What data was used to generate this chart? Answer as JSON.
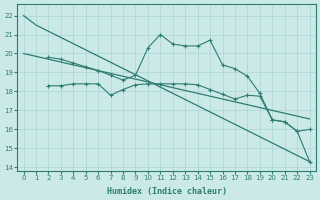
{
  "background_color": "#cce9e9",
  "grid_color": "#aad4d4",
  "line_color": "#2d7d6e",
  "xlabel": "Humidex (Indice chaleur)",
  "xlim": [
    -0.5,
    23.5
  ],
  "ylim": [
    13.8,
    22.6
  ],
  "yticks": [
    14,
    15,
    16,
    17,
    18,
    19,
    20,
    21,
    22
  ],
  "xticks": [
    0,
    1,
    2,
    3,
    4,
    5,
    6,
    7,
    8,
    9,
    10,
    11,
    12,
    13,
    14,
    15,
    16,
    17,
    18,
    19,
    20,
    21,
    22,
    23
  ],
  "line1_x": [
    0,
    1,
    23
  ],
  "line1_y": [
    22.0,
    21.5,
    14.3
  ],
  "line2_x": [
    0,
    1,
    2,
    3,
    4,
    5,
    6,
    7,
    8,
    9,
    10,
    11,
    12,
    13,
    14,
    15,
    16,
    17,
    18,
    19,
    20,
    21,
    22,
    23
  ],
  "line2_y": [
    20.0,
    19.85,
    19.7,
    19.55,
    19.4,
    19.25,
    19.1,
    18.95,
    18.8,
    18.65,
    18.5,
    18.35,
    18.2,
    18.05,
    17.9,
    17.75,
    17.6,
    17.45,
    17.3,
    17.15,
    17.0,
    16.85,
    16.7,
    16.55
  ],
  "line3_x": [
    2,
    3,
    4,
    5,
    6,
    7,
    8,
    9,
    10,
    11,
    12,
    13,
    14,
    15,
    16,
    17,
    18,
    19,
    20,
    21,
    22,
    23
  ],
  "line3_y": [
    19.8,
    19.7,
    19.5,
    19.3,
    19.1,
    18.85,
    18.6,
    18.85,
    20.3,
    21.0,
    20.5,
    20.4,
    20.4,
    20.7,
    19.4,
    19.2,
    18.8,
    17.9,
    16.5,
    16.4,
    15.9,
    16.0
  ],
  "line4_x": [
    2,
    3,
    4,
    5,
    6,
    7,
    8,
    9,
    10,
    11,
    12,
    13,
    14,
    15,
    16,
    17,
    18,
    19,
    20,
    21,
    22,
    23
  ],
  "line4_y": [
    18.3,
    18.3,
    18.4,
    18.4,
    18.4,
    17.8,
    18.1,
    18.35,
    18.4,
    18.4,
    18.4,
    18.4,
    18.35,
    18.1,
    17.85,
    17.6,
    17.8,
    17.75,
    16.5,
    16.4,
    15.9,
    14.3
  ]
}
